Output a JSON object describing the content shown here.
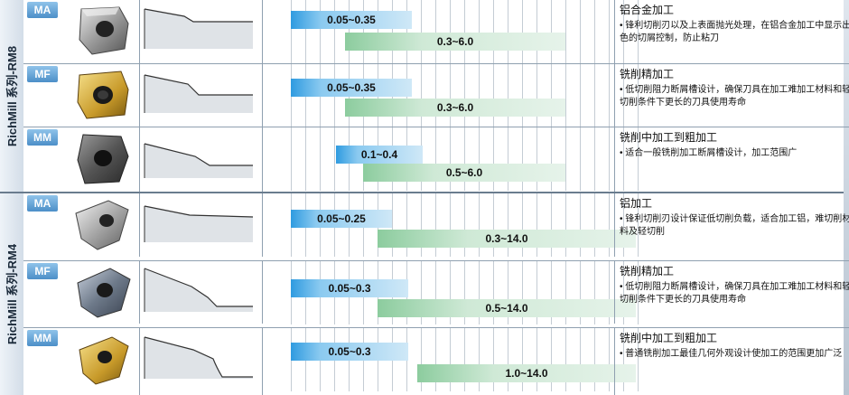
{
  "series": [
    {
      "label": "RichMill 系列-RM8",
      "rows": [
        {
          "code": "MA",
          "insert": "square-insert-silver-icon",
          "ap_label": "0.05~0.35",
          "ae_label": "0.3~6.0",
          "title": "铝合金加工",
          "desc": "• 锋利切削刃以及上表面抛光处理，在铝合金加工中显示出色的切屑控制，防止粘刀"
        },
        {
          "code": "MF",
          "insert": "square-insert-gold-icon",
          "ap_label": "0.05~0.35",
          "ae_label": "0.3~6.0",
          "title": "铣削精加工",
          "desc": "• 低切削阻力断屑槽设计，确保刀具在加工难加工材料和轻切削条件下更长的刀具使用寿命"
        },
        {
          "code": "MM",
          "insert": "square-insert-dark-icon",
          "ap_label": "0.1~0.4",
          "ae_label": "0.5~6.0",
          "title": "铣削中加工到粗加工",
          "desc": "• 适合一般铣削加工断屑槽设计，加工范围广"
        }
      ]
    },
    {
      "label": "RichMill 系列-RM4",
      "rows": [
        {
          "code": "MA",
          "insert": "rhombic-insert-silver-icon",
          "ap_label": "0.05~0.25",
          "ae_label": "0.3~14.0",
          "title": "铝加工",
          "desc": "• 锋利切削刃设计保证低切削负载，适合加工铝，难切削材料及轻切削"
        },
        {
          "code": "MF",
          "insert": "rhombic-insert-coated-icon",
          "ap_label": "0.05~0.3",
          "ae_label": "0.5~14.0",
          "title": "铣削精加工",
          "desc": "• 低切削阻力断屑槽设计，确保刀具在加工难加工材料和轻切削条件下更长的刀具使用寿命"
        },
        {
          "code": "MM",
          "insert": "rhombic-insert-gold-icon",
          "ap_label": "0.05~0.3",
          "ae_label": "1.0~14.0",
          "title": "铣削中加工到粗加工",
          "desc": "• 普通铣削加工最佳几何外观设计使加工的范围更加广泛"
        }
      ]
    }
  ],
  "colors": {
    "badge": "#4c8fc8",
    "bar_blue": "#2f9be0",
    "bar_green": "#8ccc9e",
    "rule": "#8fa0b0"
  }
}
